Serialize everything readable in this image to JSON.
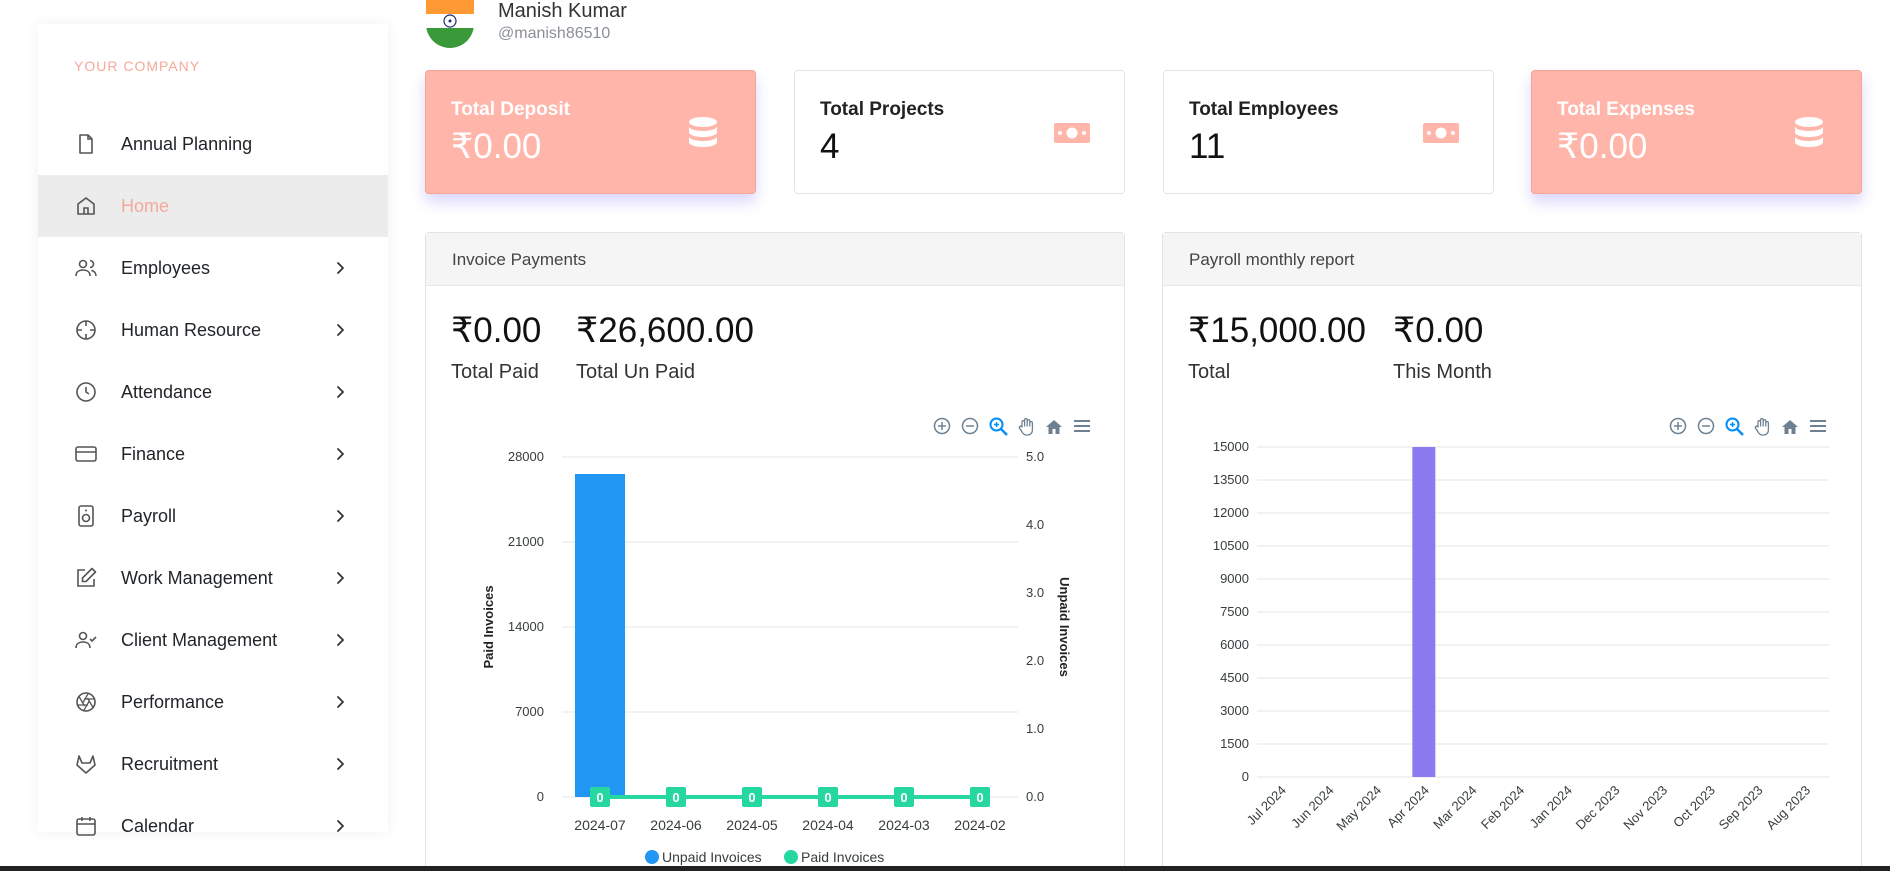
{
  "profile": {
    "name": "Manish Kumar",
    "handle": "@manish86510"
  },
  "sidebar": {
    "section_title": "YOUR COMPANY",
    "items": [
      {
        "label": "Annual Planning",
        "icon": "file-icon",
        "has_children": false,
        "active": false
      },
      {
        "label": "Home",
        "icon": "home-icon",
        "has_children": false,
        "active": true
      },
      {
        "label": "Employees",
        "icon": "users-icon",
        "has_children": true,
        "active": false
      },
      {
        "label": "Human Resource",
        "icon": "crosshair-icon",
        "has_children": true,
        "active": false
      },
      {
        "label": "Attendance",
        "icon": "clock-icon",
        "has_children": true,
        "active": false
      },
      {
        "label": "Finance",
        "icon": "credit-card-icon",
        "has_children": true,
        "active": false
      },
      {
        "label": "Payroll",
        "icon": "speaker-icon",
        "has_children": true,
        "active": false
      },
      {
        "label": "Work Management",
        "icon": "edit-icon",
        "has_children": true,
        "active": false
      },
      {
        "label": "Client Management",
        "icon": "user-check-icon",
        "has_children": true,
        "active": false
      },
      {
        "label": "Performance",
        "icon": "aperture-icon",
        "has_children": true,
        "active": false
      },
      {
        "label": "Recruitment",
        "icon": "gitlab-icon",
        "has_children": true,
        "active": false
      },
      {
        "label": "Calendar",
        "icon": "calendar-icon",
        "has_children": true,
        "active": false
      }
    ]
  },
  "stats": [
    {
      "title": "Total Deposit",
      "value": "₹0.00",
      "icon": "database-icon",
      "accent": true
    },
    {
      "title": "Total Projects",
      "value": "4",
      "icon": "money-bill-icon",
      "accent": false
    },
    {
      "title": "Total Employees",
      "value": "11",
      "icon": "money-bill-icon",
      "accent": false
    },
    {
      "title": "Total Expenses",
      "value": "₹0.00",
      "icon": "database-icon",
      "accent": true
    }
  ],
  "invoice_panel": {
    "title": "Invoice Payments",
    "metrics": [
      {
        "value": "₹0.00",
        "label": "Total Paid"
      },
      {
        "value": "₹26,600.00",
        "label": "Total Un Paid"
      }
    ]
  },
  "payroll_panel": {
    "title": "Payroll monthly report",
    "metrics": [
      {
        "value": "₹15,000.00",
        "label": "Total"
      },
      {
        "value": "₹0.00",
        "label": "This Month"
      }
    ]
  },
  "toolbar_icons": [
    "zoom-in-icon",
    "zoom-out-icon",
    "zoom-selection-icon",
    "pan-hand-icon",
    "reset-home-icon",
    "menu-icon"
  ],
  "colors": {
    "accent": "#ffb5aa",
    "accent_text": "#f4a99a",
    "unpaid_bar": "#2196f3",
    "paid_line": "#27d7a0",
    "payroll_bar": "#8a7cf0"
  },
  "chart_data": [
    {
      "type": "bar",
      "categories": [
        "2024-07",
        "2024-06",
        "2024-05",
        "2024-04",
        "2024-03",
        "2024-02"
      ],
      "series": [
        {
          "name": "Unpaid Invoices",
          "type": "bar",
          "axis": "left",
          "values": [
            26600,
            0,
            0,
            0,
            0,
            0
          ]
        },
        {
          "name": "Paid Invoices",
          "type": "line",
          "axis": "right",
          "values": [
            0,
            0,
            0,
            0,
            0,
            0
          ]
        }
      ],
      "data_labels": [
        "0",
        "0",
        "0",
        "0",
        "0",
        "0"
      ],
      "ylabel": "Paid Invoices",
      "y2label": "Unpaid Invoices",
      "ylim": [
        0,
        28000
      ],
      "yticks": [
        "0",
        "7000",
        "14000",
        "21000",
        "28000"
      ],
      "y2lim": [
        0,
        5
      ],
      "y2ticks": [
        "0.0",
        "1.0",
        "2.0",
        "3.0",
        "4.0",
        "5.0"
      ],
      "legend": [
        "Unpaid Invoices",
        "Paid Invoices"
      ],
      "legend_position": "bottom",
      "grid": true
    },
    {
      "type": "bar",
      "categories": [
        "Jul 2024",
        "Jun 2024",
        "May 2024",
        "Apr 2024",
        "Mar 2024",
        "Feb 2024",
        "Jan 2024",
        "Dec 2023",
        "Nov 2023",
        "Oct 2023",
        "Sep 2023",
        "Aug 2023"
      ],
      "values": [
        0,
        0,
        0,
        15000,
        0,
        0,
        0,
        0,
        0,
        0,
        0,
        0
      ],
      "ylim": [
        0,
        15000
      ],
      "yticks": [
        "0",
        "1500",
        "3000",
        "4500",
        "6000",
        "7500",
        "9000",
        "10500",
        "12000",
        "13500",
        "15000"
      ],
      "grid": true
    }
  ]
}
